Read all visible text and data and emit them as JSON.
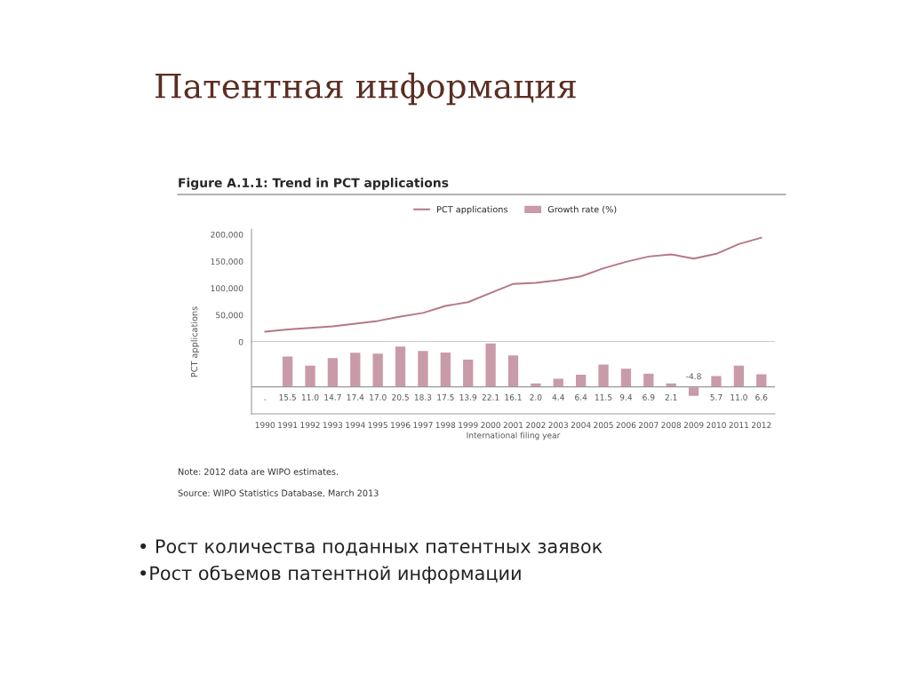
{
  "chart_data": [
    {
      "type": "line",
      "title": "Патентная информация",
      "subtitle": "Figure A.1.1: Trend in PCT applications",
      "ylabel": "PCT applications",
      "categories": [
        "1990",
        "1991",
        "1992",
        "1993",
        "1994",
        "1995",
        "1996",
        "1997",
        "1998",
        "1999",
        "2000",
        "2001",
        "2002",
        "2003",
        "2004",
        "2005",
        "2006",
        "2007",
        "2008",
        "2009",
        "2010",
        "2011",
        "2012"
      ],
      "series": [
        {
          "name": "PCT applications",
          "color": "#b47884",
          "values": [
            19000,
            23000,
            26000,
            29000,
            34000,
            39000,
            47000,
            54000,
            67000,
            74000,
            91000,
            108000,
            110000,
            115000,
            122000,
            137000,
            149000,
            159000,
            163000,
            155000,
            164000,
            182000,
            194000
          ]
        }
      ],
      "ylim": [
        0,
        210000
      ],
      "yticks": [
        {
          "value": 0,
          "label": "0"
        },
        {
          "value": 50000,
          "label": "50,000"
        },
        {
          "value": 100000,
          "label": "100,000"
        },
        {
          "value": 150000,
          "label": "150,000"
        },
        {
          "value": 200000,
          "label": "200,000"
        }
      ],
      "tick_labels": "y",
      "legend": "top",
      "grid": false
    },
    {
      "type": "bar",
      "xlabel": "International filing year",
      "categories": [
        "1990",
        "1991",
        "1992",
        "1993",
        "1994",
        "1995",
        "1996",
        "1997",
        "1998",
        "1999",
        "2000",
        "2001",
        "2002",
        "2003",
        "2004",
        "2005",
        "2006",
        "2007",
        "2008",
        "2009",
        "2010",
        "2011",
        "2012"
      ],
      "series": [
        {
          "name": "Growth rate (%)",
          "color": "#c99aa8",
          "values": [
            null,
            15.5,
            11.0,
            14.7,
            17.4,
            17.0,
            20.5,
            18.3,
            17.5,
            13.9,
            22.1,
            16.1,
            2.0,
            4.4,
            6.4,
            11.5,
            9.4,
            6.9,
            2.1,
            -4.8,
            5.7,
            11.0,
            6.6
          ],
          "value_labels": [
            ".",
            "15.5",
            "11.0",
            "14.7",
            "17.4",
            "17.0",
            "20.5",
            "18.3",
            "17.5",
            "13.9",
            "22.1",
            "16.1",
            "2.0",
            "4.4",
            "6.4",
            "11.5",
            "9.4",
            "6.9",
            "2.1",
            "-4.8",
            "5.7",
            "11.0",
            "6.6"
          ]
        }
      ],
      "tick_labels": "x",
      "annotations": [
        "Note: 2012 data are WIPO estimates.",
        "Source: WIPO Statistics Database, March 2013",
        "• Рост количества поданных патентных заявок",
        "•Рост объемов патентной информации"
      ]
    }
  ]
}
